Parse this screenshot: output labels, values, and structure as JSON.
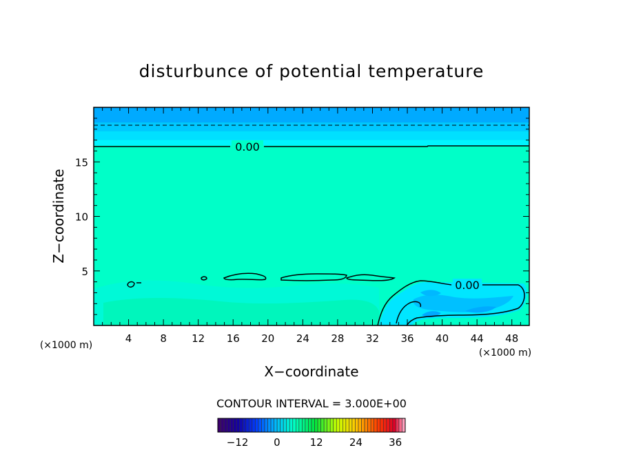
{
  "chart_data": {
    "type": "heatmap",
    "title": "disturbunce of potential temperature",
    "xlabel": "X−coordinate",
    "ylabel": "Z−coordinate",
    "x_unit_left": "(×1000 m)",
    "x_unit_right": "(×1000 m)",
    "xlim": [
      0,
      50
    ],
    "ylim": [
      0,
      20
    ],
    "x_ticks": [
      4,
      8,
      12,
      16,
      20,
      24,
      28,
      32,
      36,
      40,
      44,
      48
    ],
    "y_ticks": [
      5,
      10,
      15
    ],
    "contour_interval_text": "CONTOUR INTERVAL = 3.000E+00",
    "contour_labels": [
      {
        "text": "0.00",
        "x": 17.5,
        "z": 16.3
      },
      {
        "text": "0.00",
        "x": 42.0,
        "z": 3.5
      }
    ],
    "colorbar": {
      "vmin": -18,
      "vmax": 39,
      "ticks": [
        -12,
        0,
        12,
        24,
        36
      ],
      "tick_labels": [
        "−12",
        "0",
        "12",
        "24",
        "36"
      ]
    },
    "field_regions": [
      {
        "name": "background",
        "value": 0.5,
        "color": "#00ffc8"
      },
      {
        "name": "upper-layer-1",
        "z": [
          16.5,
          17.0
        ],
        "value": -1.5,
        "color": "#00f5ff"
      },
      {
        "name": "upper-layer-2",
        "z": [
          17.0,
          17.8
        ],
        "value": -3,
        "color": "#00e0ff"
      },
      {
        "name": "upper-layer-3",
        "z": [
          17.8,
          18.6
        ],
        "value": -4.5,
        "color": "#00c8ff"
      },
      {
        "name": "upper-layer-4",
        "z": [
          18.6,
          19.8
        ],
        "value": -6,
        "color": "#00aaff"
      },
      {
        "name": "cold-pool",
        "x": [
          33,
          50
        ],
        "z": [
          0,
          4
        ],
        "value": -3,
        "color": "#00e6ff"
      },
      {
        "name": "cold-pool-core",
        "x": [
          36,
          48
        ],
        "z": [
          1,
          3
        ],
        "value": -6,
        "color": "#00b4ff"
      }
    ],
    "colors": {
      "zero": "#00ffc8",
      "light_green": "#00f5a0",
      "cyan": "#00f0ff",
      "blue": "#00aaff"
    }
  }
}
